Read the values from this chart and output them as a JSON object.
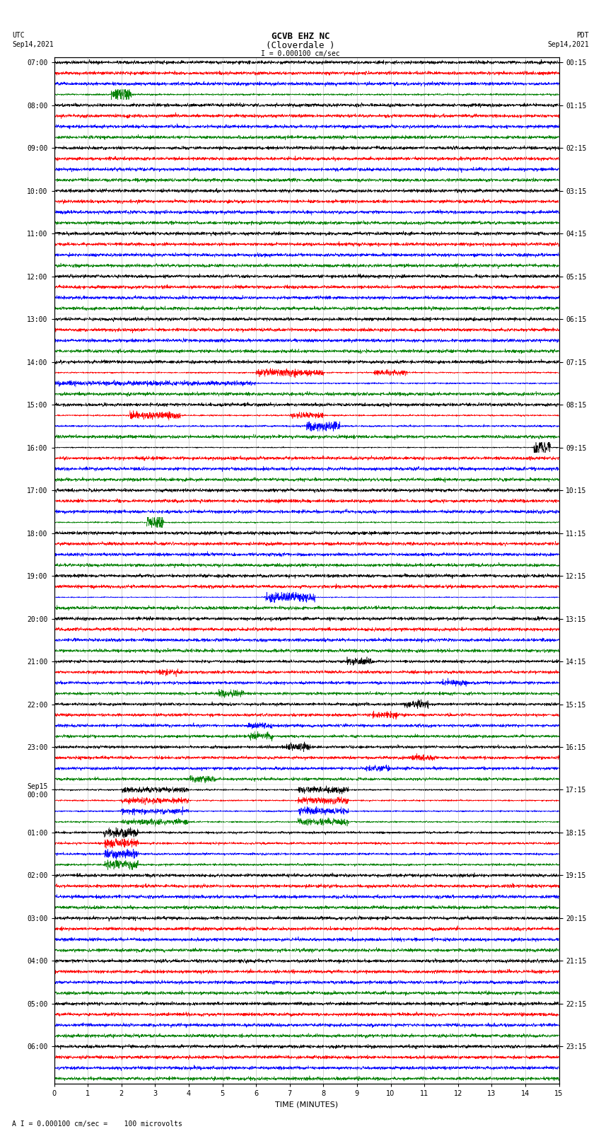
{
  "title_line1": "GCVB EHZ NC",
  "title_line2": "(Cloverdale )",
  "scale_label": "I = 0.000100 cm/sec",
  "footer_label": "A I = 0.000100 cm/sec =    100 microvolts",
  "utc_label_line1": "UTC",
  "utc_label_line2": "Sep14,2021",
  "pdt_label_line1": "PDT",
  "pdt_label_line2": "Sep14,2021",
  "xlabel": "TIME (MINUTES)",
  "bg_color": "#ffffff",
  "trace_colors": [
    "black",
    "red",
    "blue",
    "green"
  ],
  "grid_color": "#888888",
  "grid_alpha": 0.5,
  "xmin": 0,
  "xmax": 15,
  "num_groups": 24,
  "traces_per_group": 4,
  "font_size_title": 9,
  "font_size_labels": 7,
  "font_size_ticks": 7
}
